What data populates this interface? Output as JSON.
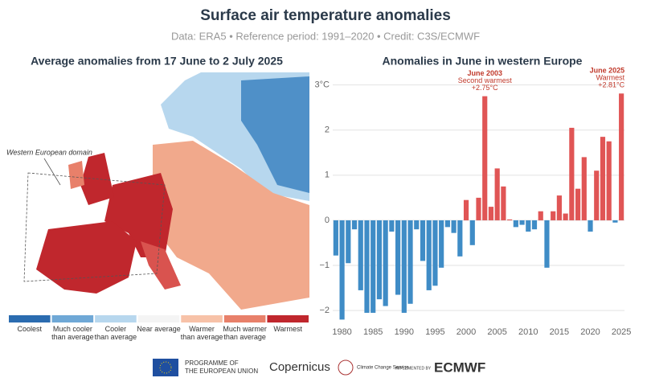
{
  "header": {
    "title": "Surface air temperature anomalies",
    "subtitle": "Data: ERA5 • Reference period: 1991–2020 • Credit: C3S/ECMWF"
  },
  "map": {
    "title": "Average anomalies from 17 June to 2 July 2025",
    "annotation": "Western European domain",
    "legend": [
      {
        "label": "Coolest",
        "color": "#2b6cb0"
      },
      {
        "label": "Much cooler than average",
        "color": "#6fa8d6"
      },
      {
        "label": "Cooler than average",
        "color": "#b7d7ee"
      },
      {
        "label": "Near average",
        "color": "#f4f4f4"
      },
      {
        "label": "Warmer than average",
        "color": "#f7c2a8"
      },
      {
        "label": "Much warmer than average",
        "color": "#e8806a"
      },
      {
        "label": "Warmest",
        "color": "#c0272d"
      }
    ]
  },
  "chart_data": {
    "type": "bar",
    "title": "Anomalies in June in western Europe",
    "x": [
      1979,
      1980,
      1981,
      1982,
      1983,
      1984,
      1985,
      1986,
      1987,
      1988,
      1989,
      1990,
      1991,
      1992,
      1993,
      1994,
      1995,
      1996,
      1997,
      1998,
      1999,
      2000,
      2001,
      2002,
      2003,
      2004,
      2005,
      2006,
      2007,
      2008,
      2009,
      2010,
      2011,
      2012,
      2013,
      2014,
      2015,
      2016,
      2017,
      2018,
      2019,
      2020,
      2021,
      2022,
      2023,
      2024,
      2025
    ],
    "values": [
      -0.78,
      -2.2,
      -0.95,
      -0.2,
      -1.55,
      -2.05,
      -2.05,
      -1.75,
      -1.9,
      -0.25,
      -1.65,
      -2.05,
      -1.85,
      -0.2,
      -0.9,
      -1.55,
      -1.45,
      -1.05,
      -0.15,
      -0.28,
      -0.8,
      0.45,
      -0.55,
      0.5,
      2.75,
      0.3,
      1.15,
      0.75,
      0.02,
      -0.15,
      -0.1,
      -0.25,
      -0.2,
      0.2,
      -1.05,
      0.2,
      0.55,
      0.15,
      2.05,
      0.7,
      1.4,
      -0.25,
      1.1,
      1.85,
      1.75,
      -0.05,
      2.81
    ],
    "positive_color": "#e05555",
    "negative_color": "#3f8cc6",
    "xlim": [
      1978.5,
      2025.5
    ],
    "xticks": [
      1980,
      1985,
      1990,
      1995,
      2000,
      2005,
      2010,
      2015,
      2020,
      2025
    ],
    "ylim": [
      -2.3,
      3.1
    ],
    "yticks": [
      {
        "value": -2,
        "label": "−2"
      },
      {
        "value": -1,
        "label": "−1"
      },
      0,
      1,
      2,
      {
        "value": 3,
        "label": "3°C"
      }
    ],
    "grid": true,
    "annotations": [
      {
        "x": 2003,
        "lines": [
          "June 2003",
          "Second warmest",
          "+2.75°C"
        ]
      },
      {
        "x": 2025,
        "lines": [
          "June 2025",
          "Warmest",
          "+2.81°C"
        ]
      }
    ]
  },
  "footer": {
    "eu": [
      "PROGRAMME OF",
      "THE EUROPEAN UNION"
    ],
    "copernicus": "Copernicus",
    "c3s": "Climate Change Service",
    "implemented": "IMPLEMENTED BY",
    "ecmwf": "ECMWF"
  }
}
